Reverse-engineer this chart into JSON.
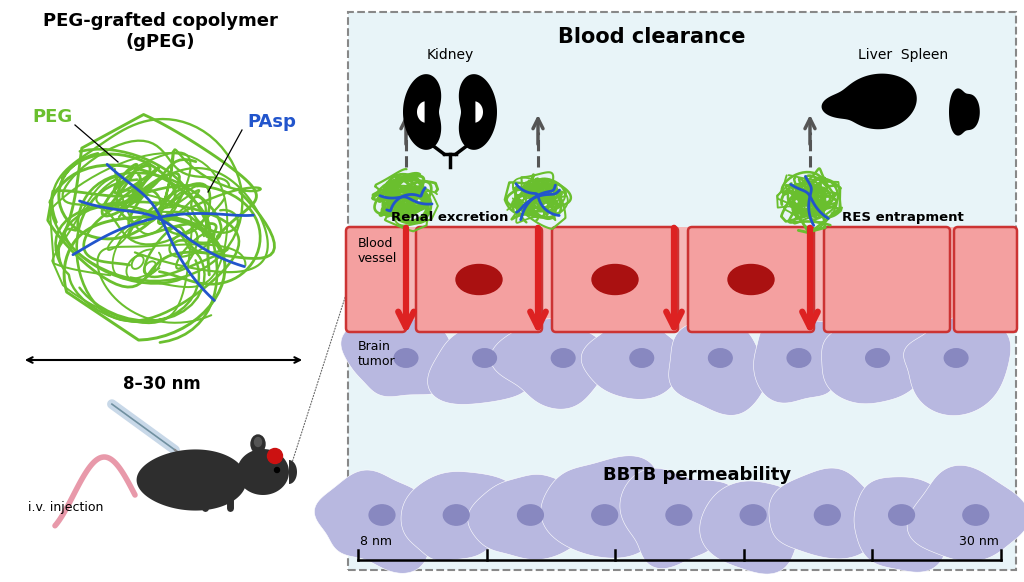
{
  "title_left": "PEG-grafted copolymer\n(gPEG)",
  "label_peg": "PEG",
  "label_pasp": "PAsp",
  "size_label": "8–30 nm",
  "injection_label": "i.v. injection",
  "blood_clearance": "Blood clearance",
  "kidney_label": "Kidney",
  "liver_spleen_label": "Liver  Spleen",
  "renal_excretion": "Renal excretion",
  "res_entrapment": "RES entrapment",
  "blood_vessel": "Blood\nvessel",
  "brain_tumor": "Brain\ntumor",
  "bbtb": "BBTB permeability",
  "nm_left": "8 nm",
  "nm_right": "30 nm",
  "bg_color": "#ffffff",
  "light_blue_bg": "#e8f4f8",
  "pink_bg": "#f5b8b8",
  "cell_color": "#b8b8e0",
  "cell_dark": "#8888c0",
  "peg_green": "#6abf2e",
  "pasp_blue": "#2255cc",
  "arrow_red": "#dd2222",
  "arrow_gray": "#555555",
  "box_fill": "#f4a0a0",
  "box_border": "#cc3333",
  "dashed_border": "#888888",
  "rbc_color": "#aa1111"
}
